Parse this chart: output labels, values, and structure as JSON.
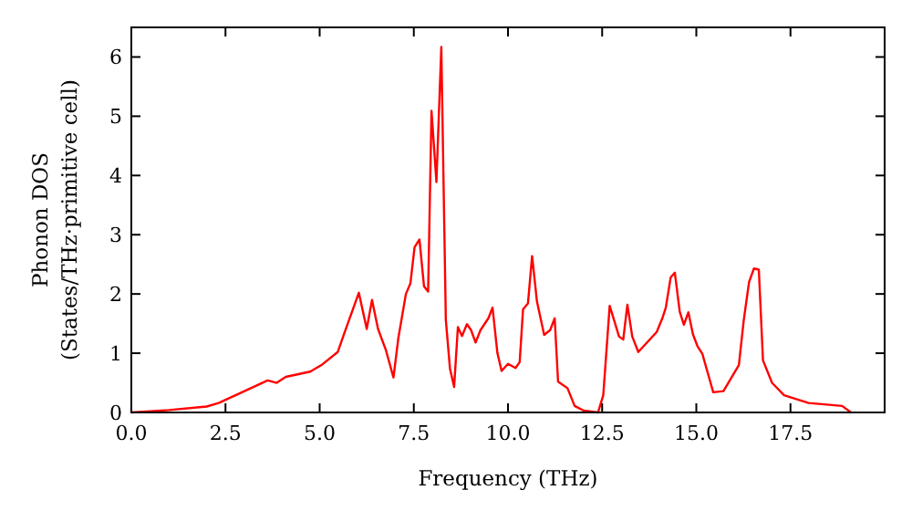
{
  "chart_data": {
    "type": "line",
    "xlabel": "Frequency (THz)",
    "ylabel": "Phonon DOS\n(States/THz·primitive cell)",
    "xlim": [
      0,
      20
    ],
    "ylim": [
      0,
      6.5
    ],
    "xticks": [
      {
        "value": 0,
        "label": "0.0"
      },
      {
        "value": 2.5,
        "label": "2.5"
      },
      {
        "value": 5,
        "label": "5.0"
      },
      {
        "value": 7.5,
        "label": "7.5"
      },
      {
        "value": 10,
        "label": "10.0"
      },
      {
        "value": 12.5,
        "label": "12.5"
      },
      {
        "value": 15,
        "label": "15.0"
      },
      {
        "value": 17.5,
        "label": "17.5"
      }
    ],
    "yticks": [
      0,
      1,
      2,
      3,
      4,
      5,
      6
    ],
    "grid": false,
    "marker": "none",
    "line_style": "solid",
    "series": [
      {
        "color": "#ff0000",
        "x": [
          0,
          1,
          2,
          2.32,
          3.62,
          3.86,
          4.1,
          4.75,
          5.07,
          5.48,
          5.64,
          6.04,
          6.25,
          6.39,
          6.55,
          6.76,
          6.96,
          7.09,
          7.29,
          7.41,
          7.52,
          7.65,
          7.77,
          7.88,
          7.97,
          8.1,
          8.23,
          8.35,
          8.46,
          8.57,
          8.67,
          8.78,
          8.91,
          9.02,
          9.14,
          9.27,
          9.48,
          9.59,
          9.72,
          9.83,
          10.0,
          10.2,
          10.31,
          10.4,
          10.53,
          10.64,
          10.77,
          10.96,
          11.12,
          11.24,
          11.33,
          11.58,
          11.77,
          12.01,
          12.39,
          12.53,
          12.7,
          12.95,
          13.06,
          13.17,
          13.3,
          13.46,
          13.95,
          14.11,
          14.19,
          14.32,
          14.43,
          14.56,
          14.67,
          14.79,
          14.91,
          15.03,
          15.16,
          15.45,
          15.72,
          16.13,
          16.26,
          16.4,
          16.53,
          16.66,
          16.77,
          17.01,
          17.33,
          17.98,
          18.87,
          19.11
        ],
        "values": [
          0,
          0.04,
          0.1,
          0.16,
          0.54,
          0.5,
          0.6,
          0.69,
          0.81,
          1.02,
          1.31,
          2.02,
          1.41,
          1.9,
          1.41,
          1.05,
          0.59,
          1.26,
          2.0,
          2.18,
          2.79,
          2.92,
          2.13,
          2.04,
          5.09,
          3.89,
          6.17,
          1.56,
          0.74,
          0.43,
          1.44,
          1.29,
          1.49,
          1.39,
          1.18,
          1.39,
          1.59,
          1.77,
          1.0,
          0.7,
          0.82,
          0.75,
          0.85,
          1.74,
          1.84,
          2.64,
          1.87,
          1.31,
          1.39,
          1.59,
          0.52,
          0.41,
          0.11,
          0.03,
          0,
          0.29,
          1.8,
          1.28,
          1.23,
          1.82,
          1.28,
          1.02,
          1.36,
          1.61,
          1.77,
          2.28,
          2.36,
          1.7,
          1.48,
          1.69,
          1.32,
          1.12,
          0.99,
          0.34,
          0.36,
          0.8,
          1.56,
          2.2,
          2.43,
          2.41,
          0.88,
          0.5,
          0.29,
          0.16,
          0.11,
          0
        ]
      }
    ]
  }
}
